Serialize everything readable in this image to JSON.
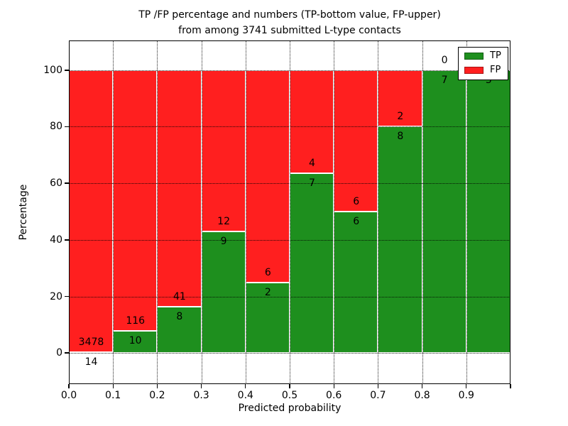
{
  "title": {
    "line1": "TP /FP percentage and numbers (TP-bottom value, FP-upper)",
    "line2": "from among 3741 submitted L-type contacts"
  },
  "axes": {
    "x_label": "Predicted probability",
    "y_label": "Percentage",
    "x_tick_labels": [
      "0.0",
      "0.1",
      "0.2",
      "0.3",
      "0.4",
      "0.5",
      "0.6",
      "0.7",
      "0.8",
      "0.9"
    ],
    "y_tick_labels": [
      "0",
      "20",
      "40",
      "60",
      "80",
      "100"
    ],
    "y_tick_values": [
      0,
      20,
      40,
      60,
      80,
      100
    ]
  },
  "legend": {
    "items": [
      {
        "label": "TP",
        "color": "#1e8f1e"
      },
      {
        "label": "FP",
        "color": "#ff1f1f"
      }
    ]
  },
  "chart_data": {
    "type": "bar",
    "stacked": true,
    "normalized_to_100_percent": true,
    "title": "TP /FP percentage and numbers (TP-bottom value, FP-upper) from among 3741 submitted L-type contacts",
    "xlabel": "Predicted probability",
    "ylabel": "Percentage",
    "xlim": [
      0.0,
      1.0
    ],
    "ylim": [
      -11,
      110.5
    ],
    "grid": "dotted black, vertical at every 0.1 and horizontal at every 20, drawn on top of bars",
    "legend_position": "upper right",
    "bin_edges": [
      0.0,
      0.1,
      0.2,
      0.3,
      0.4,
      0.5,
      0.6,
      0.7,
      0.8,
      0.9,
      1.0
    ],
    "categories": [
      "0.0-0.1",
      "0.1-0.2",
      "0.2-0.3",
      "0.3-0.4",
      "0.4-0.5",
      "0.5-0.6",
      "0.6-0.7",
      "0.7-0.8",
      "0.8-0.9",
      "0.9-1.0"
    ],
    "series": [
      {
        "name": "TP",
        "color": "#1e8f1e",
        "counts": [
          14,
          10,
          8,
          9,
          2,
          7,
          6,
          8,
          7,
          5
        ],
        "pct": [
          0.4,
          7.94,
          16.33,
          42.86,
          25.0,
          63.64,
          50.0,
          80.0,
          100.0,
          100.0
        ]
      },
      {
        "name": "FP",
        "color": "#ff1f1f",
        "counts": [
          3478,
          116,
          41,
          12,
          6,
          4,
          6,
          2,
          0,
          0
        ],
        "pct": [
          99.6,
          92.06,
          83.67,
          57.14,
          75.0,
          36.36,
          50.0,
          20.0,
          0.0,
          0.0
        ]
      }
    ],
    "annotation_rule": "For each bin, the FP count is printed just above the TP/FP boundary and the TP count just below it"
  }
}
